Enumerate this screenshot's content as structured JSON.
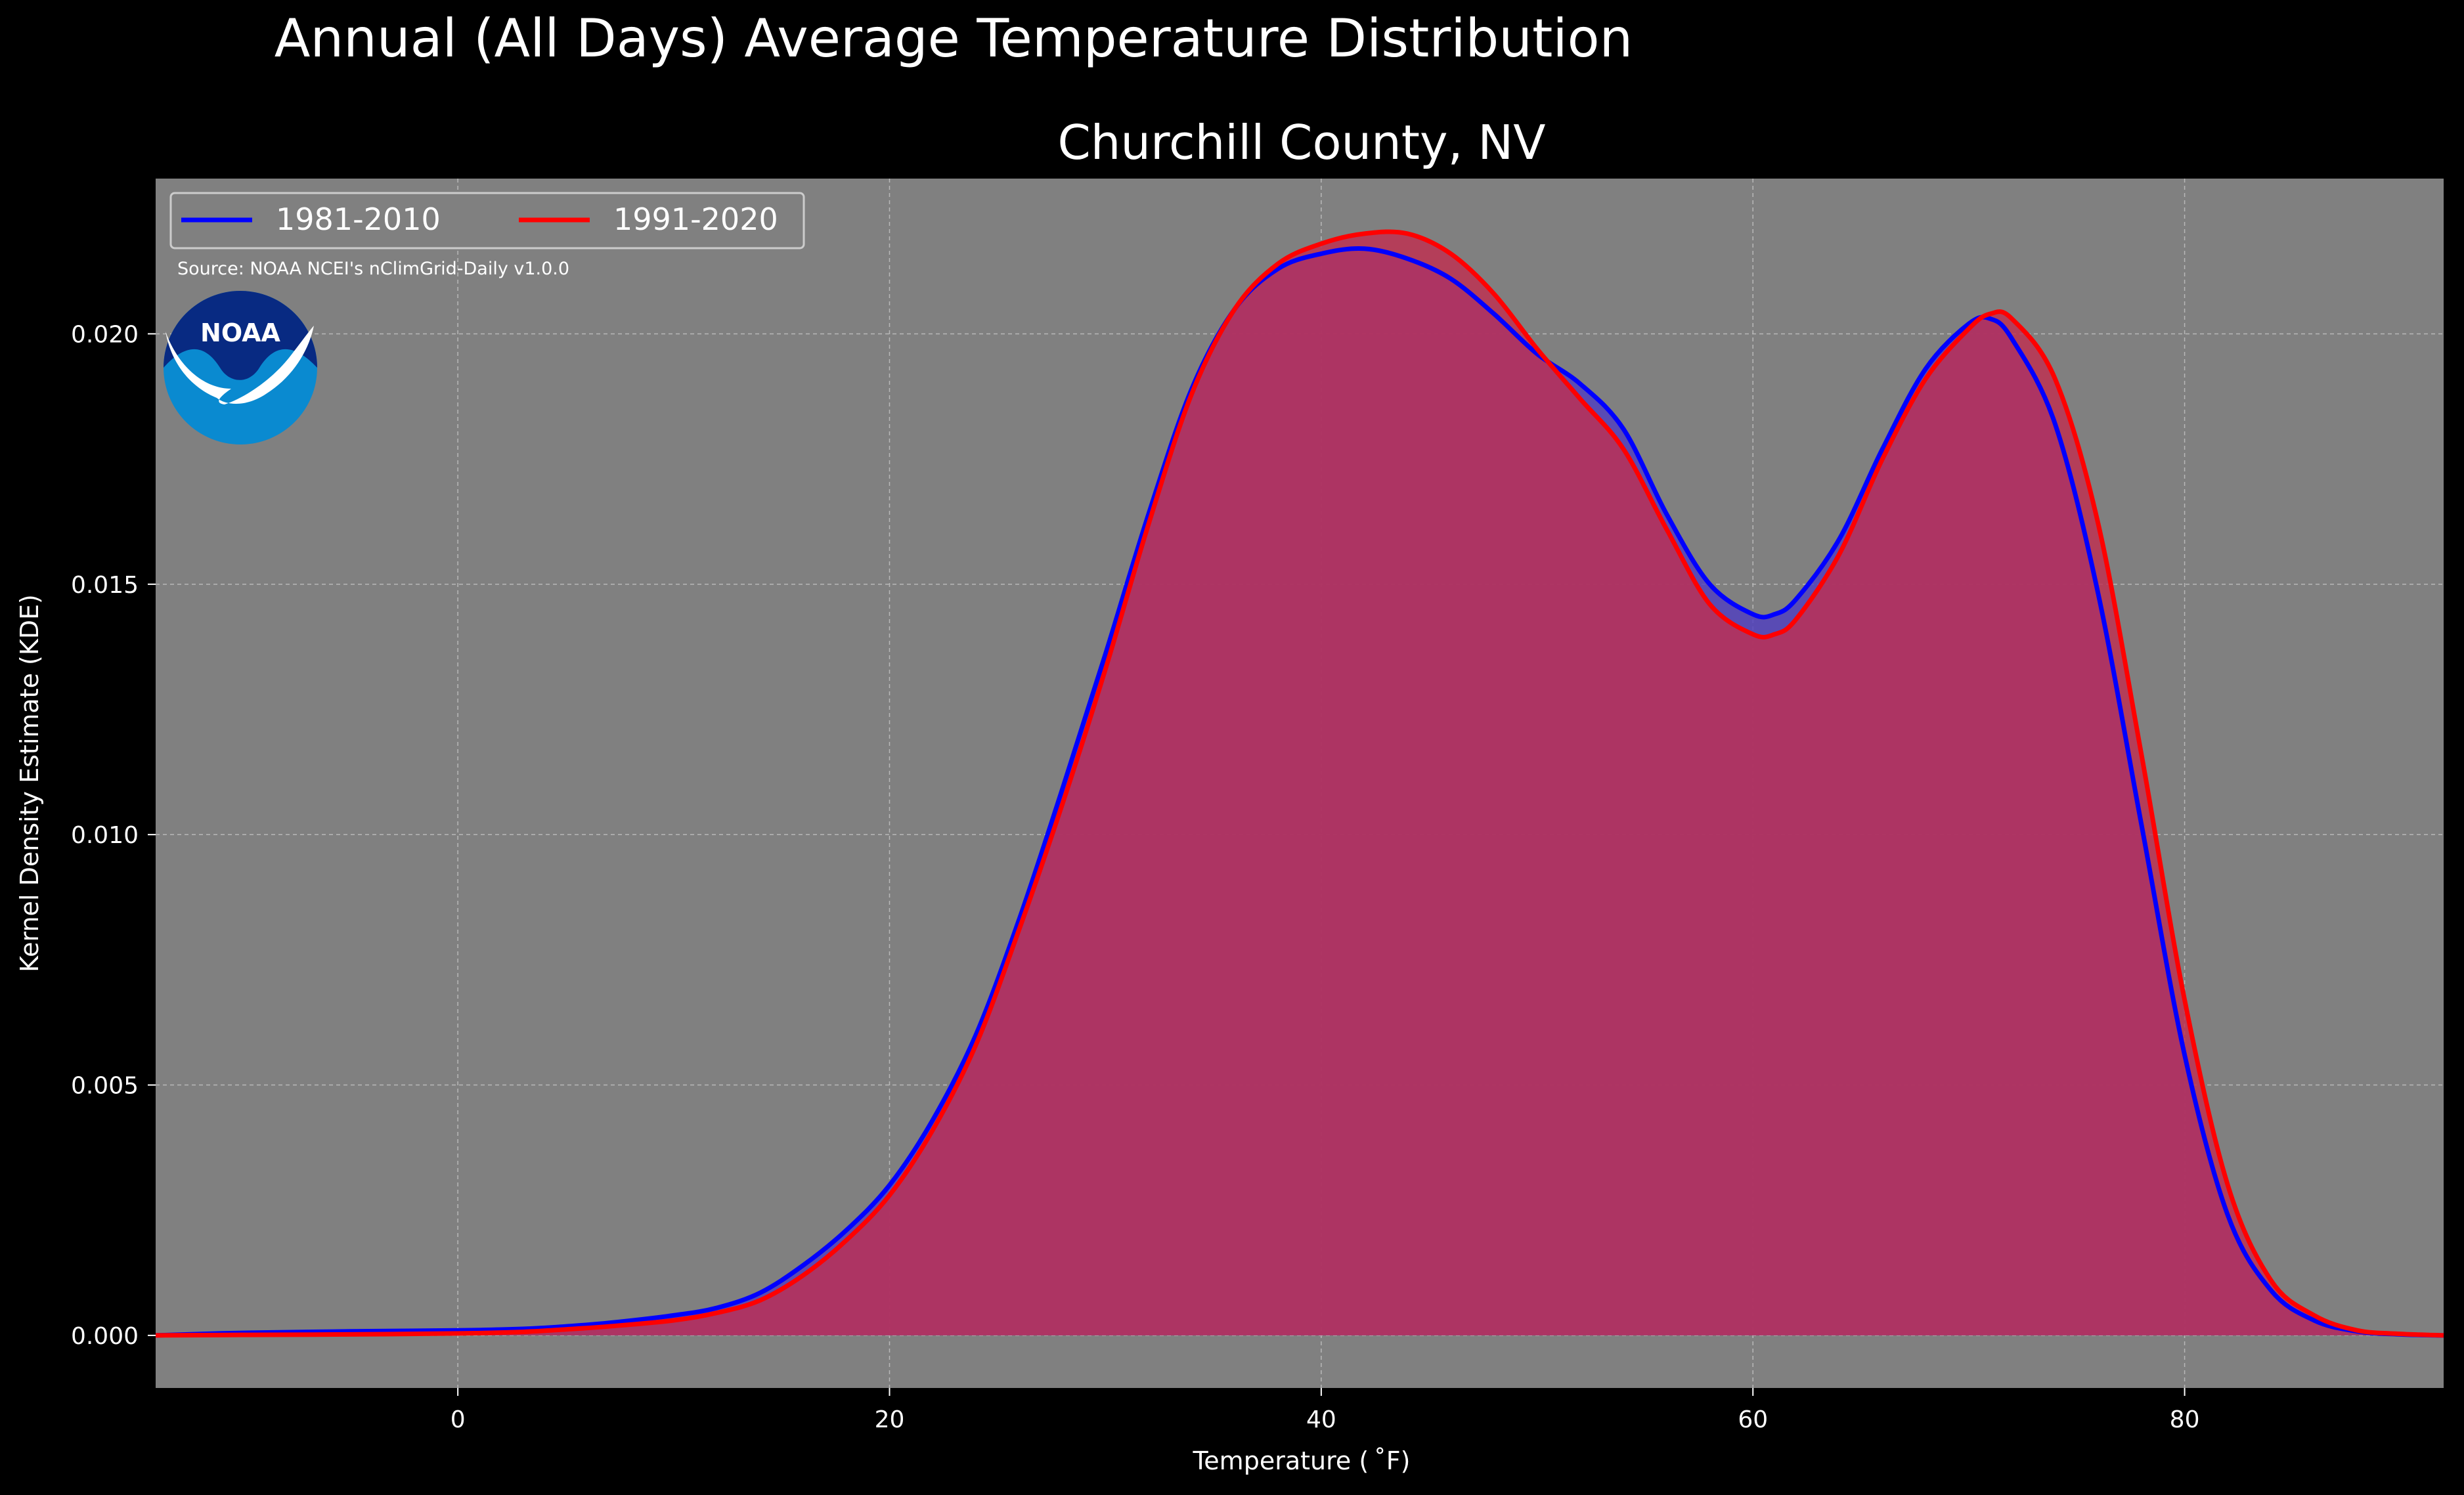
{
  "chart_data": {
    "type": "area",
    "title": "Annual (All Days) Average Temperature Distribution",
    "subtitle": "Churchill County, NV",
    "xlabel": "Temperature ($^\\circ$F)",
    "xlabel_display": "Temperature ( ˚F)",
    "ylabel": "Kernel Density Estimate (KDE)",
    "xlim": [
      -14,
      92
    ],
    "ylim": [
      -0.00105,
      0.0231
    ],
    "xticks": [
      0,
      20,
      40,
      60,
      80
    ],
    "yticks": [
      0.0,
      0.005,
      0.01,
      0.015,
      0.02
    ],
    "ytick_labels": [
      "0.000",
      "0.005",
      "0.010",
      "0.015",
      "0.020"
    ],
    "grid": true,
    "legend_position": "top-left",
    "source_note": "Source: NOAA NCEI's nClimGrid-Daily v1.0.0",
    "logo_text": "NOAA",
    "series": [
      {
        "name": "1981-2010",
        "color": "#0000ff",
        "fill": "#5040c0",
        "x": [
          -14,
          -10,
          -5,
          0,
          3,
          5,
          7,
          10,
          12,
          14,
          16,
          18,
          20,
          22,
          24,
          26,
          28,
          30,
          32,
          34,
          36,
          38,
          40,
          42,
          44,
          46,
          48,
          50,
          52,
          54,
          56,
          58,
          60,
          61,
          62,
          64,
          66,
          68,
          70,
          71,
          72,
          74,
          76,
          78,
          80,
          82,
          84,
          86,
          88,
          90,
          92
        ],
        "y": [
          0.0,
          5e-05,
          8e-05,
          0.0001,
          0.00013,
          0.00018,
          0.00025,
          0.0004,
          0.00055,
          0.00085,
          0.0014,
          0.0021,
          0.003,
          0.0043,
          0.006,
          0.0083,
          0.0109,
          0.0136,
          0.0164,
          0.0189,
          0.0205,
          0.0213,
          0.0216,
          0.0217,
          0.0215,
          0.0211,
          0.0204,
          0.0196,
          0.019,
          0.0181,
          0.0164,
          0.015,
          0.0144,
          0.0144,
          0.0147,
          0.0159,
          0.0177,
          0.0193,
          0.0202,
          0.0203,
          0.0199,
          0.0182,
          0.0148,
          0.0102,
          0.0056,
          0.0024,
          0.0009,
          0.0003,
          8e-05,
          2e-05,
          0.0
        ]
      },
      {
        "name": "1991-2020",
        "color": "#ff0000",
        "fill": "#c03050",
        "x": [
          -14,
          -10,
          -5,
          0,
          3,
          5,
          7,
          10,
          12,
          14,
          16,
          18,
          20,
          22,
          24,
          26,
          28,
          30,
          32,
          34,
          36,
          38,
          40,
          42,
          44,
          46,
          48,
          50,
          52,
          54,
          56,
          58,
          60,
          61,
          62,
          64,
          66,
          68,
          70,
          71,
          72,
          74,
          76,
          78,
          80,
          82,
          84,
          86,
          88,
          90,
          92
        ],
        "y": [
          0.0,
          1e-05,
          2e-05,
          4e-05,
          7e-05,
          0.00012,
          0.00018,
          0.0003,
          0.00045,
          0.0007,
          0.0012,
          0.0019,
          0.0028,
          0.0041,
          0.0058,
          0.0081,
          0.0106,
          0.0133,
          0.0162,
          0.0188,
          0.0205,
          0.0214,
          0.0218,
          0.022,
          0.022,
          0.0216,
          0.0208,
          0.0197,
          0.0187,
          0.0177,
          0.0161,
          0.0146,
          0.014,
          0.014,
          0.0143,
          0.0156,
          0.0175,
          0.0191,
          0.0201,
          0.0204,
          0.0203,
          0.0191,
          0.0162,
          0.0116,
          0.0067,
          0.003,
          0.0011,
          0.0004,
          0.0001,
          3e-05,
          0.0
        ]
      }
    ]
  }
}
